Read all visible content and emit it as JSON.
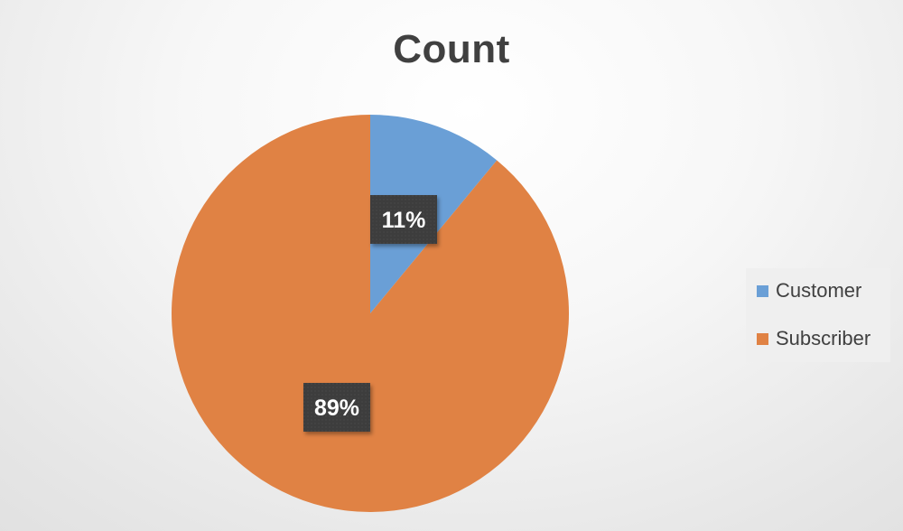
{
  "chart_data": {
    "type": "pie",
    "title": "Count",
    "categories": [
      "Customer",
      "Subscriber"
    ],
    "values": [
      11,
      89
    ],
    "data_labels": [
      "11%",
      "89%"
    ],
    "colors": [
      "#6a9fd6",
      "#e08244"
    ],
    "legend_position": "right",
    "start_angle_deg": 0,
    "direction": "clockwise"
  }
}
